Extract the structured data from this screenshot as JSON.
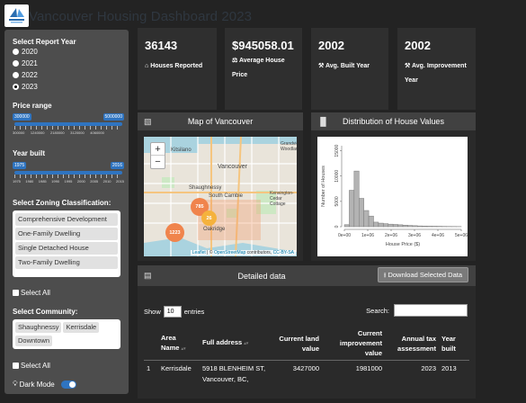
{
  "app": {
    "title": "Vancouver Housing Dashboard 2023"
  },
  "sidebar": {
    "report_year": {
      "label": "Select Report Year",
      "options": [
        "2020",
        "2021",
        "2022",
        "2023"
      ],
      "selected": "2023"
    },
    "price_range": {
      "label": "Price range",
      "min": "300000",
      "max": "5000000",
      "ticks": [
        "300000",
        "1240000",
        "2180000",
        "3120000",
        "4060000",
        "5000000"
      ]
    },
    "year_built": {
      "label": "Year built",
      "min": "1975",
      "max": "2016",
      "ticks": [
        "1975",
        "1980",
        "1985",
        "1990",
        "1995",
        "2000",
        "2005",
        "2010",
        "2015"
      ]
    },
    "zoning": {
      "label": "Select Zoning Classification:",
      "items": [
        "Comprehensive Development",
        "One-Family Dwelling",
        "Single Detached House",
        "Two-Family Dwelling"
      ],
      "select_all": "Select All"
    },
    "community": {
      "label": "Select Community:",
      "items": [
        "Shaughnessy",
        "Kerrisdale",
        "Downtown"
      ],
      "select_all": "Select All"
    },
    "dark_mode": {
      "label": "Dark Mode",
      "enabled": true
    }
  },
  "value_boxes": [
    {
      "value": "36143",
      "caption": "Houses Reported",
      "icon": "home-icon"
    },
    {
      "value": "$945058.01",
      "caption": "Average House Price",
      "icon": "money-bag-icon"
    },
    {
      "value": "2002",
      "caption": "Avg. Built Year",
      "icon": "hammer-icon"
    },
    {
      "value": "2002",
      "caption": "Avg. Improvement Year",
      "icon": "wrench-icon"
    }
  ],
  "map_card": {
    "title": "Map of Vancouver",
    "labels": [
      "Vancouver",
      "Kitsilano",
      "Shaughnessy",
      "South Cambie",
      "Kensington-Cedar Cottage",
      "Oakridge",
      "Grandview-Woodland"
    ],
    "clusters": [
      "785",
      "26",
      "1223"
    ],
    "attribution_leaflet": "Leaflet",
    "attribution_osm": "OpenStreetMap",
    "attribution_text": " | © ",
    "attribution_contrib": " contributors, ",
    "attribution_license": "CC-BY-SA"
  },
  "histogram_card": {
    "title": "Distribution of House Values"
  },
  "chart_data": {
    "type": "bar",
    "title": "",
    "xlabel": "House Price ($)",
    "ylabel": "Number of Houses",
    "categories": [
      "3e+05",
      "5e+05",
      "7e+05",
      "9e+05",
      "1.1e+06",
      "1.3e+06",
      "1.5e+06",
      "1.7e+06",
      "1.9e+06",
      "2.1e+06",
      "2.3e+06",
      "2.5e+06",
      "2.7e+06",
      "2.9e+06",
      "3.1e+06",
      "3.3e+06",
      "3.5e+06",
      "3.7e+06",
      "3.9e+06",
      "4.1e+06",
      "4.3e+06",
      "4.5e+06",
      "4.7e+06",
      "4.9e+06"
    ],
    "values": [
      400,
      7200,
      11000,
      5600,
      3200,
      2100,
      900,
      700,
      600,
      500,
      450,
      380,
      300,
      250,
      200,
      150,
      120,
      100,
      90,
      80,
      60,
      50,
      40,
      30
    ],
    "xticks": [
      "0e+00",
      "1e+06",
      "2e+06",
      "3e+06",
      "4e+06",
      "5e+06"
    ],
    "yticks": [
      "0",
      "5000",
      "10000",
      "15000"
    ],
    "xlim": [
      0,
      5000000
    ],
    "ylim": [
      0,
      16000
    ]
  },
  "table_card": {
    "title": "Detailed data",
    "download_label": "Download Selected Data",
    "show_label": "Show",
    "show_value": "10",
    "entries_label": "entries",
    "search_label": "Search:",
    "columns": [
      "Area Name",
      "Full address",
      "Current land value",
      "Current improvement value",
      "Annual tax assessment",
      "Year built"
    ],
    "rows": [
      {
        "index": "1",
        "area": "Kerrisdale",
        "address": "5918 BLENHEIM ST, Vancouver, BC,",
        "land": "3427000",
        "improvement": "1981000",
        "tax": "2023",
        "year": "2013"
      }
    ]
  }
}
